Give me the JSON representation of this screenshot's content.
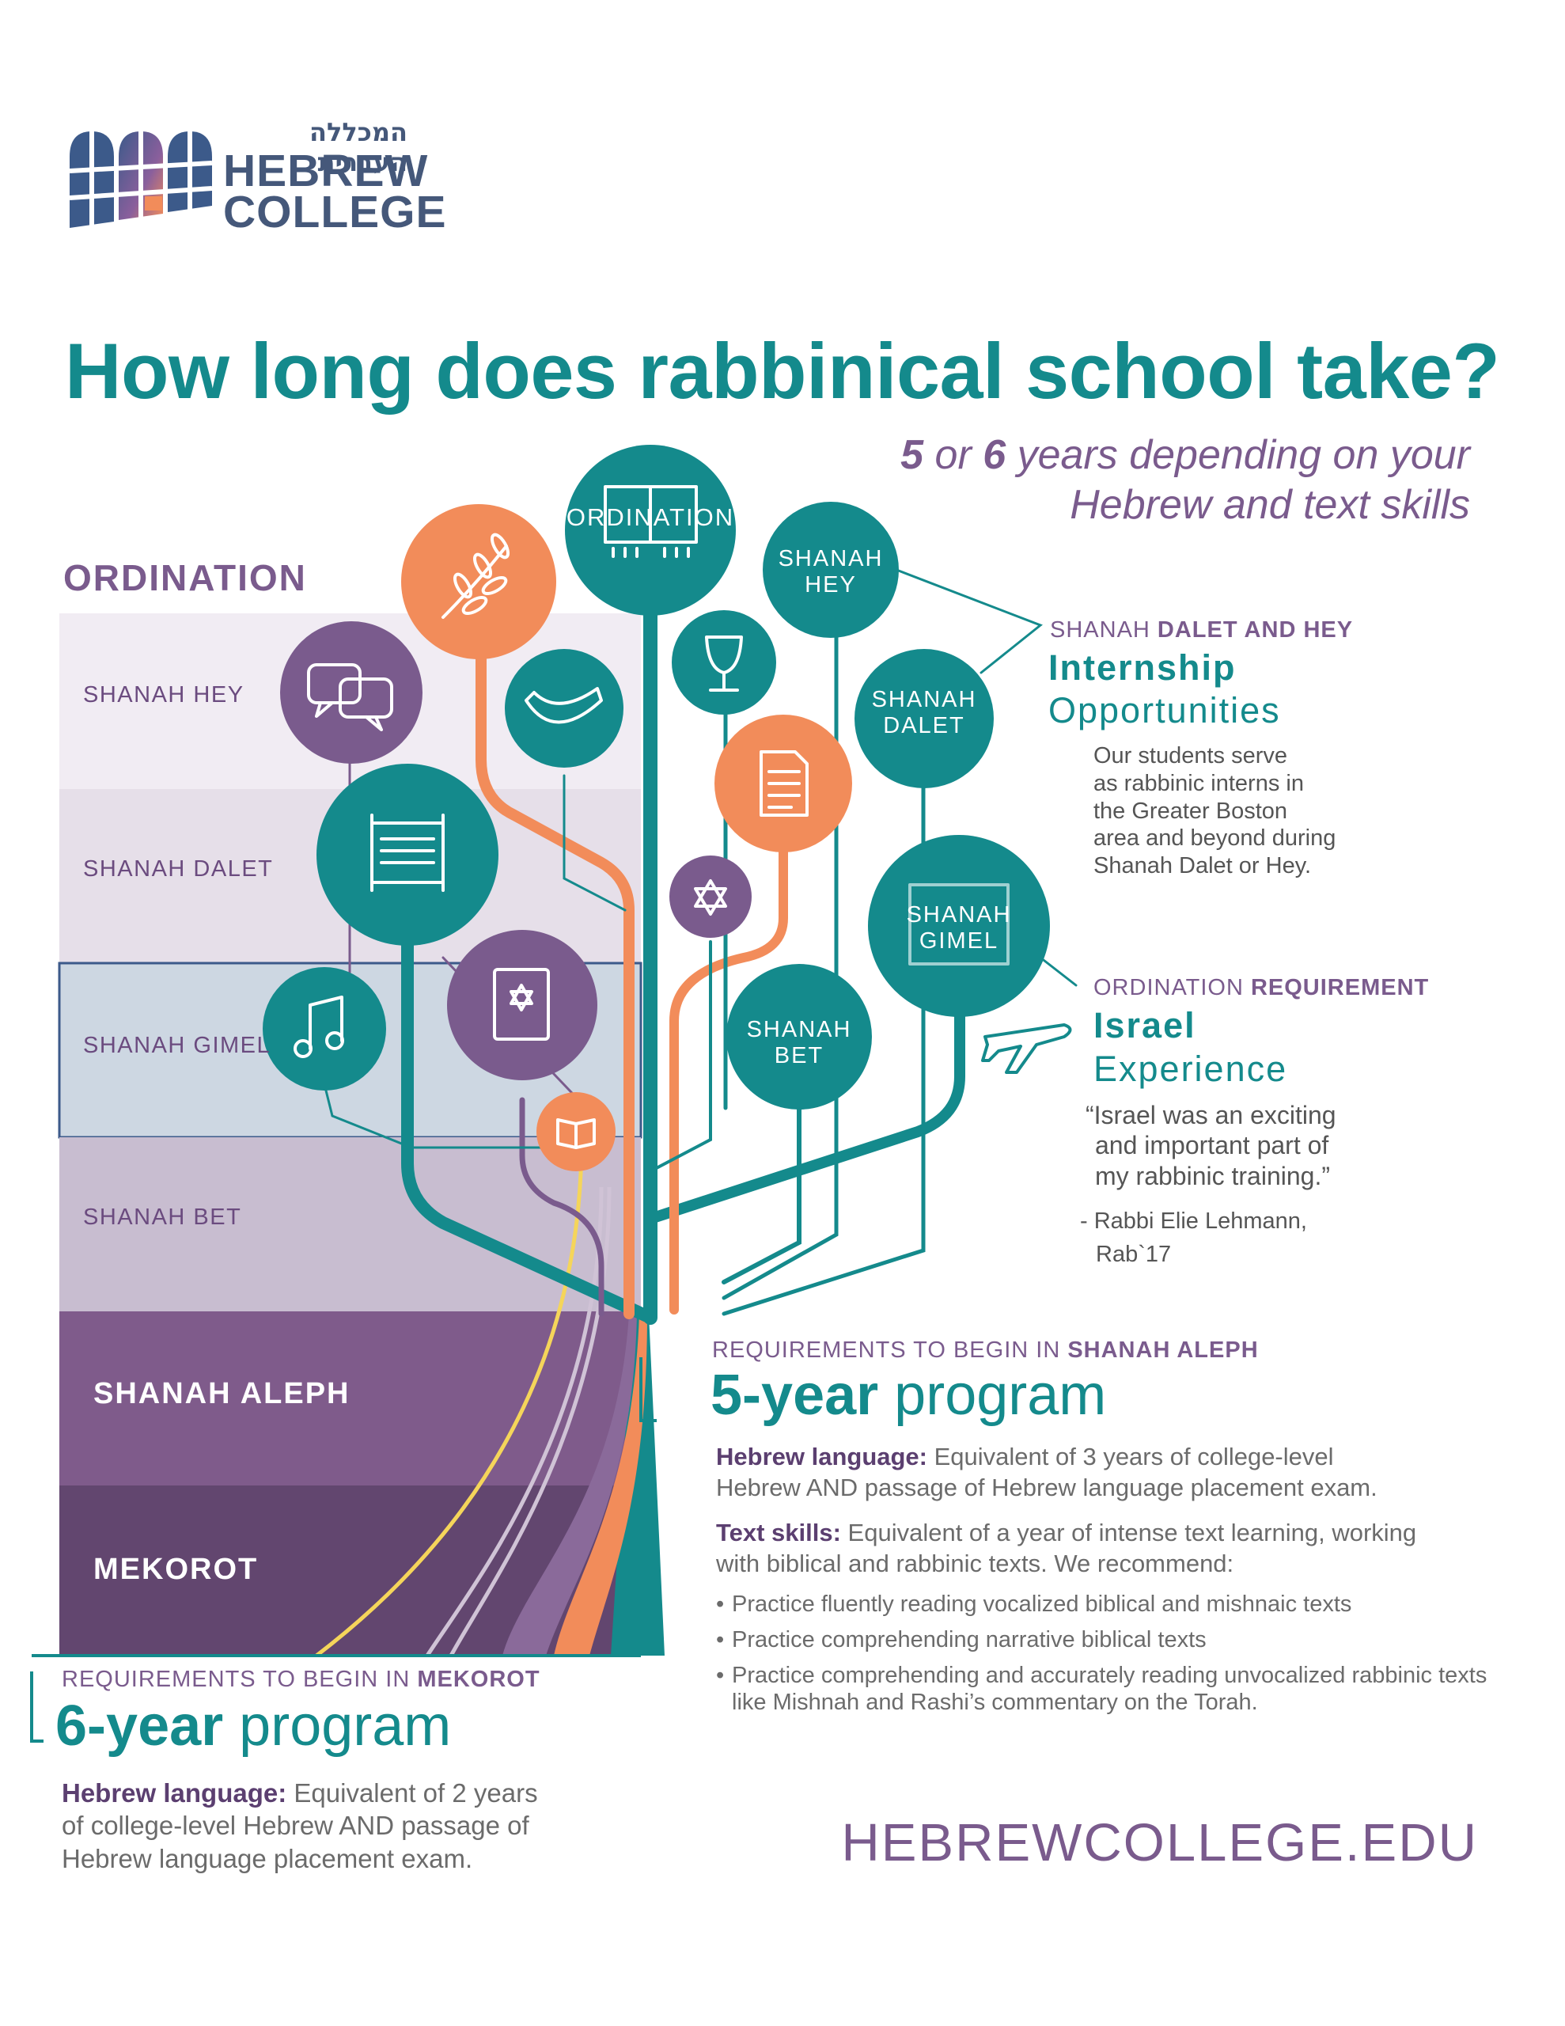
{
  "logo": {
    "hebrew": "המכללה העברית",
    "line1": "HEBREW",
    "line2": "COLLEGE"
  },
  "title": "How long does rabbinical school take?",
  "subtitle": {
    "line1_parts": [
      "5",
      " or ",
      "6",
      " years depending on your"
    ],
    "line2": "Hebrew and text skills"
  },
  "bands": {
    "ordination": "ORDINATION",
    "shanah_hey": "SHANAH HEY",
    "shanah_dalet": "SHANAH DALET",
    "shanah_gimel": "SHANAH GIMEL",
    "shanah_bet": "SHANAH BET",
    "shanah_aleph": "SHANAH ALEPH",
    "mekorot": "MEKOROT"
  },
  "nodes": {
    "ordination": "ORDINATION",
    "shanah_hey": [
      "SHANAH",
      "HEY"
    ],
    "shanah_dalet": [
      "SHANAH",
      "DALET"
    ],
    "shanah_gimel": [
      "SHANAH",
      "GIMEL"
    ],
    "shanah_bet": [
      "SHANAH",
      "BET"
    ]
  },
  "internship": {
    "eyebrow_pre": "SHANAH ",
    "eyebrow_bold": "DALET AND HEY",
    "title1": "Internship",
    "title2": "Opportunities",
    "body": [
      "Our students serve",
      "as rabbinic interns in",
      "the Greater Boston",
      "area and beyond during",
      "Shanah Dalet or Hey."
    ]
  },
  "israel": {
    "eyebrow_pre": "ORDINATION ",
    "eyebrow_bold": "REQUIREMENT",
    "title1": "Israel",
    "title2": "Experience",
    "quote": [
      "“Israel was an exciting",
      "and important part of",
      "my rabbinic training.”"
    ],
    "attribution": [
      "- Rabbi Elie Lehmann,",
      "Rab`17"
    ]
  },
  "five_year": {
    "eyebrow_pre": "REQUIREMENTS TO BEGIN IN ",
    "eyebrow_bold": "SHANAH ALEPH",
    "prog_bold": "5-year",
    "prog_rest": " program",
    "hebrew_label": "Hebrew language:",
    "hebrew_text": " Equivalent of 3 years of college-level",
    "hebrew_text2": "Hebrew AND passage of Hebrew language placement exam.",
    "text_label": "Text skills:",
    "text_text": " Equivalent of a year of intense text learning, working",
    "text_text2": "with biblical and rabbinic texts. We recommend:",
    "bullets": [
      "Practice fluently reading vocalized biblical and mishnaic texts",
      "Practice comprehending narrative biblical texts",
      "Practice comprehending and accurately reading unvocalized rabbinic texts like Mishnah and Rashi’s commentary on the Torah."
    ]
  },
  "six_year": {
    "eyebrow_pre": "REQUIREMENTS TO BEGIN IN ",
    "eyebrow_bold": "MEKOROT",
    "prog_bold": "6-year",
    "prog_rest": " program",
    "hebrew_label": "Hebrew language:",
    "hebrew_text": " Equivalent of 2 years",
    "hebrew_text2": "of college-level Hebrew AND passage of",
    "hebrew_text3": "Hebrew language placement exam."
  },
  "url": "HEBREWCOLLEGE.EDU",
  "colors": {
    "teal": "#148a8c",
    "orange": "#f28c5a",
    "purple": "#7a5b8d",
    "dark_purple": "#5b3f70",
    "yellow": "#f5d55a"
  },
  "icons": [
    "olive-branch-icon",
    "chat-bubbles-icon",
    "shofar-icon",
    "kiddush-cup-icon",
    "document-icon",
    "torah-scroll-icon",
    "star-of-david-icon",
    "book-star-icon",
    "music-note-icon",
    "open-book-icon",
    "tallit-icon",
    "airplane-icon"
  ]
}
